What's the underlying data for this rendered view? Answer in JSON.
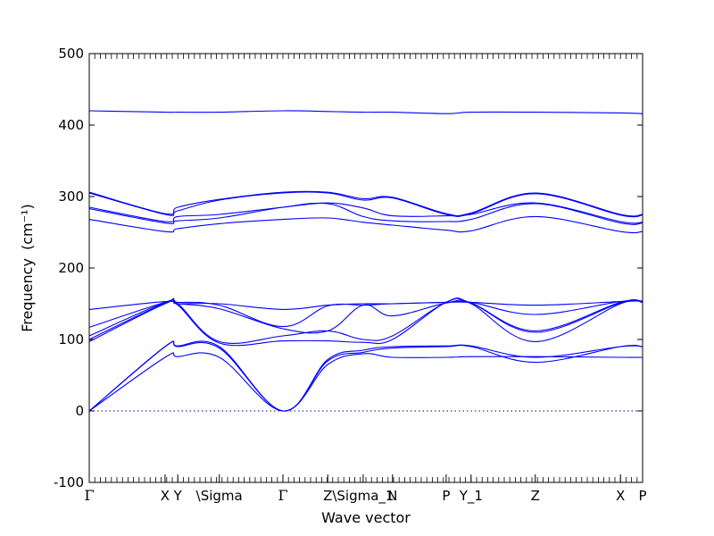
{
  "chart_data": {
    "type": "line",
    "title": "",
    "xlabel": "Wave vector",
    "ylabel": "Frequency",
    "ylabel_unit": "(cm⁻¹)",
    "ylim": [
      -100,
      500
    ],
    "yticks": [
      -100,
      0,
      100,
      200,
      300,
      400,
      500
    ],
    "xlim": [
      0,
      1
    ],
    "grid": false,
    "zero_line": true,
    "high_symmetry_points": [
      {
        "label": "Γ",
        "x": 0.0
      },
      {
        "label": "X",
        "x": 0.137
      },
      {
        "label": "Y",
        "x": 0.16
      },
      {
        "label": "\\Sigma",
        "x": 0.235
      },
      {
        "label": "Γ",
        "x": 0.35
      },
      {
        "label": "Z",
        "x": 0.431
      },
      {
        "label": "\\Sigma_1",
        "x": 0.495
      },
      {
        "label": "N",
        "x": 0.548
      },
      {
        "label": "P",
        "x": 0.645
      },
      {
        "label": "Y_1",
        "x": 0.69
      },
      {
        "label": "Z",
        "x": 0.806
      },
      {
        "label": "X",
        "x": 0.96
      },
      {
        "label": "P",
        "x": 1.0
      }
    ],
    "series": [
      {
        "x": [
          0,
          0.137,
          0.16,
          0.235,
          0.35,
          0.431,
          0.495,
          0.548,
          0.645,
          0.69,
          0.806,
          0.96,
          1.0
        ],
        "values": [
          0,
          75,
          76,
          75,
          0,
          65,
          80,
          75,
          75,
          76,
          76,
          75,
          75
        ]
      },
      {
        "x": [
          0,
          0.137,
          0.16,
          0.235,
          0.35,
          0.431,
          0.495,
          0.548,
          0.645,
          0.69,
          0.806,
          0.96,
          1.0
        ],
        "values": [
          0,
          90,
          90,
          88,
          0,
          70,
          82,
          88,
          90,
          90,
          68,
          90,
          90
        ]
      },
      {
        "x": [
          0,
          0.137,
          0.16,
          0.235,
          0.35,
          0.431,
          0.495,
          0.548,
          0.645,
          0.69,
          0.806,
          0.96,
          1.0
        ],
        "values": [
          0,
          90,
          91,
          90,
          0,
          72,
          85,
          90,
          91,
          91,
          75,
          90,
          90
        ]
      },
      {
        "x": [
          0,
          0.137,
          0.16,
          0.235,
          0.35,
          0.431,
          0.495,
          0.548,
          0.645,
          0.69,
          0.806,
          0.96,
          1.0
        ],
        "values": [
          97,
          150,
          148,
          95,
          98,
          98,
          96,
          100,
          152,
          150,
          97,
          150,
          152
        ]
      },
      {
        "x": [
          0,
          0.137,
          0.16,
          0.235,
          0.35,
          0.431,
          0.495,
          0.548,
          0.645,
          0.69,
          0.806,
          0.96,
          1.0
        ],
        "values": [
          100,
          151,
          150,
          97,
          105,
          112,
          100,
          105,
          152,
          151,
          110,
          151,
          152
        ]
      },
      {
        "x": [
          0,
          0.137,
          0.16,
          0.235,
          0.35,
          0.431,
          0.495,
          0.548,
          0.645,
          0.69,
          0.806,
          0.96,
          1.0
        ],
        "values": [
          105,
          152,
          150,
          143,
          115,
          112,
          148,
          133,
          151,
          151,
          112,
          152,
          153
        ]
      },
      {
        "x": [
          0,
          0.137,
          0.16,
          0.235,
          0.35,
          0.431,
          0.495,
          0.548,
          0.645,
          0.69,
          0.806,
          0.96,
          1.0
        ],
        "values": [
          117,
          152,
          152,
          148,
          118,
          147,
          148,
          150,
          152,
          152,
          135,
          153,
          153
        ]
      },
      {
        "x": [
          0,
          0.137,
          0.16,
          0.235,
          0.35,
          0.431,
          0.495,
          0.548,
          0.645,
          0.69,
          0.806,
          0.96,
          1.0
        ],
        "values": [
          142,
          153,
          150,
          150,
          142,
          148,
          150,
          150,
          152,
          152,
          148,
          153,
          154
        ]
      },
      {
        "x": [
          0,
          0.137,
          0.16,
          0.235,
          0.35,
          0.431,
          0.495,
          0.548,
          0.645,
          0.69,
          0.806,
          0.96,
          1.0
        ],
        "values": [
          268,
          251,
          255,
          262,
          268,
          270,
          264,
          260,
          253,
          252,
          272,
          251,
          251
        ]
      },
      {
        "x": [
          0,
          0.137,
          0.16,
          0.235,
          0.35,
          0.431,
          0.495,
          0.548,
          0.645,
          0.69,
          0.806,
          0.96,
          1.0
        ],
        "values": [
          283,
          263,
          266,
          270,
          285,
          290,
          272,
          266,
          265,
          268,
          290,
          263,
          263
        ]
      },
      {
        "x": [
          0,
          0.137,
          0.16,
          0.235,
          0.35,
          0.431,
          0.495,
          0.548,
          0.645,
          0.69,
          0.806,
          0.96,
          1.0
        ],
        "values": [
          285,
          265,
          272,
          275,
          285,
          291,
          284,
          273,
          273,
          275,
          291,
          265,
          264
        ]
      },
      {
        "x": [
          0,
          0.137,
          0.16,
          0.235,
          0.35,
          0.431,
          0.495,
          0.548,
          0.645,
          0.69,
          0.806,
          0.96,
          1.0
        ],
        "values": [
          305,
          275,
          280,
          295,
          305,
          305,
          295,
          298,
          275,
          276,
          304,
          274,
          274
        ]
      },
      {
        "x": [
          0,
          0.137,
          0.16,
          0.235,
          0.35,
          0.431,
          0.495,
          0.548,
          0.645,
          0.69,
          0.806,
          0.96,
          1.0
        ],
        "values": [
          306,
          276,
          285,
          296,
          306,
          306,
          297,
          299,
          276,
          277,
          305,
          275,
          275
        ]
      },
      {
        "x": [
          0,
          0.137,
          0.16,
          0.235,
          0.35,
          0.431,
          0.495,
          0.548,
          0.645,
          0.69,
          0.806,
          0.96,
          1.0
        ],
        "values": [
          420,
          418,
          418,
          418,
          420,
          419,
          418,
          418,
          416,
          418,
          418,
          417,
          416
        ]
      }
    ]
  }
}
